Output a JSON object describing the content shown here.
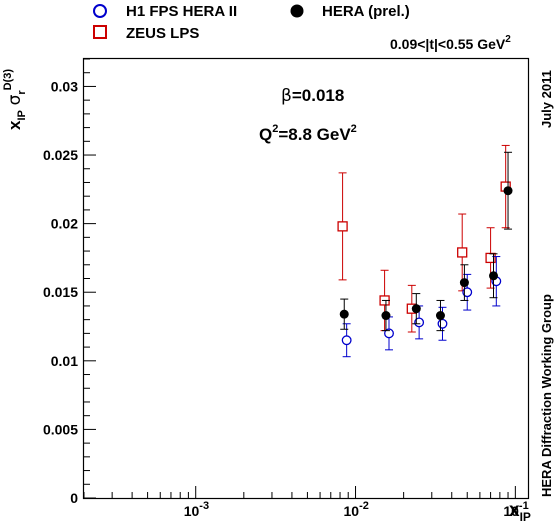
{
  "legend": [
    {
      "label": "H1 FPS HERA II",
      "marker": "open-circle",
      "color": "#0000cc"
    },
    {
      "label": "HERA (prel.)",
      "marker": "filled-circle",
      "color": "#000000"
    },
    {
      "label": "ZEUS LPS",
      "marker": "open-square",
      "color": "#cc0000"
    }
  ],
  "annotations": {
    "t_range": "0.09<|t|<0.55 GeV",
    "t_range_sup": "2",
    "beta_symbol": "β",
    "beta_value": "=0.018",
    "q2_label": "Q",
    "q2_sup": "2",
    "q2_value": "=8.8 GeV",
    "q2_value_sup": "2",
    "date": "July 2011",
    "group": "HERA Diffraction Working Group"
  },
  "chart_data": {
    "type": "scatter",
    "title": "",
    "xlabel": "x",
    "xlabel_sub": "IP",
    "ylabel_main": "x",
    "ylabel_sub": "IP",
    "ylabel_sigma": "σ",
    "ylabel_sigma_sub": "r",
    "ylabel_sigma_sup": "D(3)",
    "xscale": "log",
    "xlim": [
      0.0002,
      0.12
    ],
    "ylim": [
      0,
      0.032
    ],
    "x_ticks": [
      {
        "value": 0.001,
        "base": "10",
        "exp": "-3"
      },
      {
        "value": 0.01,
        "base": "10",
        "exp": "-2"
      },
      {
        "value": 0.1,
        "base": "10",
        "exp": "-1"
      }
    ],
    "y_ticks": [
      {
        "value": 0,
        "label": "0"
      },
      {
        "value": 0.005,
        "label": "0.005"
      },
      {
        "value": 0.01,
        "label": "0.01"
      },
      {
        "value": 0.015,
        "label": "0.015"
      },
      {
        "value": 0.02,
        "label": "0.02"
      },
      {
        "value": 0.025,
        "label": "0.025"
      },
      {
        "value": 0.03,
        "label": "0.03"
      }
    ],
    "grid": false,
    "series": [
      {
        "name": "ZEUS LPS",
        "marker": "open-square",
        "color": "#cc0000",
        "x": [
          0.0083,
          0.0152,
          0.0225,
          0.0465,
          0.07,
          0.087
        ],
        "y": [
          0.0198,
          0.0144,
          0.0138,
          0.0179,
          0.0175,
          0.0227
        ],
        "err": [
          0.0039,
          0.0022,
          0.0017,
          0.0028,
          0.0022,
          0.003
        ]
      },
      {
        "name": "H1 FPS HERA II",
        "marker": "open-circle",
        "color": "#0000cc",
        "x": [
          0.0088,
          0.0162,
          0.025,
          0.035,
          0.05,
          0.076
        ],
        "y": [
          0.0115,
          0.012,
          0.0128,
          0.0127,
          0.015,
          0.0158
        ],
        "err": [
          0.0012,
          0.0012,
          0.0012,
          0.0012,
          0.0013,
          0.0018
        ]
      },
      {
        "name": "HERA (prel.)",
        "marker": "filled-circle",
        "color": "#000000",
        "x": [
          0.0085,
          0.0155,
          0.024,
          0.034,
          0.048,
          0.073,
          0.09
        ],
        "y": [
          0.0134,
          0.0133,
          0.0138,
          0.0133,
          0.0157,
          0.0162,
          0.0224
        ],
        "err": [
          0.0011,
          0.0011,
          0.0011,
          0.0011,
          0.0013,
          0.0016,
          0.0028
        ]
      }
    ]
  }
}
